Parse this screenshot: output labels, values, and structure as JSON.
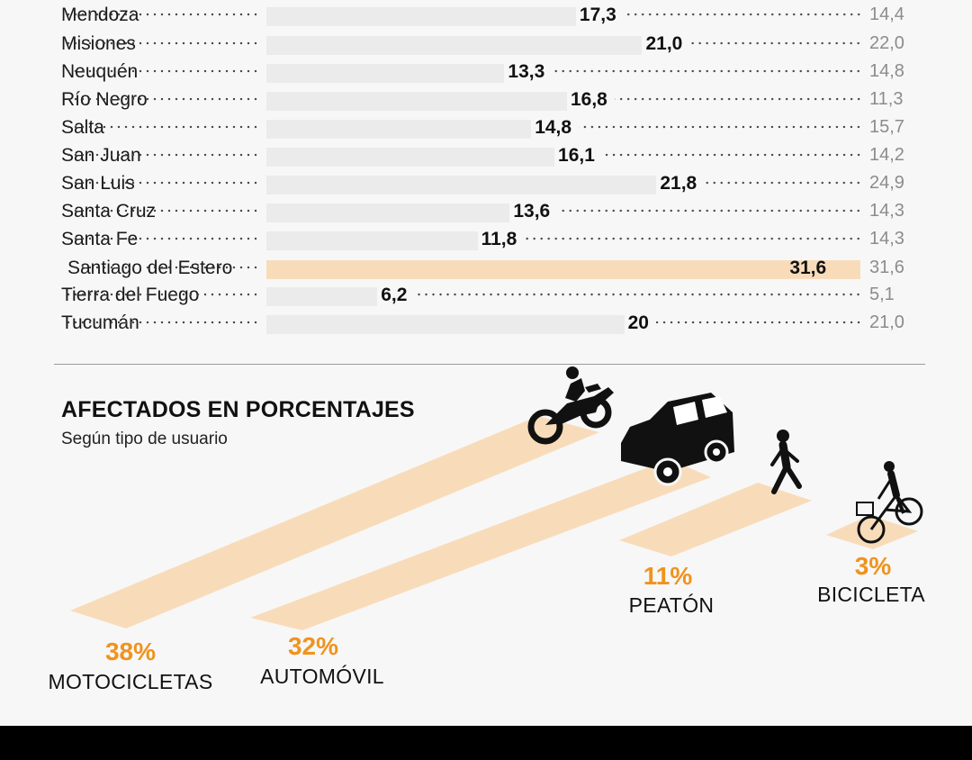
{
  "provinces": {
    "rows": [
      {
        "name": "Mendoza",
        "value": "17,3",
        "previous": "14,4"
      },
      {
        "name": "Misiones",
        "value": "21,0",
        "previous": "22,0"
      },
      {
        "name": "Neuquén",
        "value": "13,3",
        "previous": "14,8"
      },
      {
        "name": "Río Negro",
        "value": "16,8",
        "previous": "11,3"
      },
      {
        "name": "Salta",
        "value": "14,8",
        "previous": "15,7"
      },
      {
        "name": "San Juan",
        "value": "16,1",
        "previous": "14,2"
      },
      {
        "name": "San Luis",
        "value": "21,8",
        "previous": "24,9"
      },
      {
        "name": "Santa Cruz",
        "value": "13,6",
        "previous": "14,3"
      },
      {
        "name": "Santa Fe",
        "value": "11,8",
        "previous": "14,3"
      },
      {
        "name": "Santiago del Estero",
        "value": "31,6",
        "previous": "31,6"
      },
      {
        "name": "Tierra del Fuego",
        "value": "6,2",
        "previous": "5,1"
      },
      {
        "name": "Tucumán",
        "value": "20",
        "previous": "21,0"
      }
    ],
    "highlight_index": 9,
    "highlight_color": "#f8dcba"
  },
  "section": {
    "title": "AFECTADOS EN PORCENTAJES",
    "subtitle": "Según tipo de usuario"
  },
  "chart_data": [
    {
      "type": "bar",
      "categories": [
        "Mendoza",
        "Misiones",
        "Neuquén",
        "Río Negro",
        "Salta",
        "San Juan",
        "San Luis",
        "Santa Cruz",
        "Santa Fe",
        "Santiago del Estero",
        "Tierra del Fuego",
        "Tucumán"
      ],
      "series": [
        {
          "values": [
            17.3,
            21.0,
            13.3,
            16.8,
            14.8,
            16.1,
            21.8,
            13.6,
            11.8,
            31.6,
            6.2,
            20
          ]
        },
        {
          "values": [
            14.4,
            22.0,
            14.8,
            11.3,
            15.7,
            14.2,
            24.9,
            14.3,
            14.3,
            31.6,
            5.1,
            21.0
          ]
        }
      ],
      "xlim": [
        0,
        33.2
      ],
      "orientation": "horizontal"
    },
    {
      "type": "bar",
      "title": "AFECTADOS EN PORCENTAJES",
      "subtitle": "Según tipo de usuario",
      "categories": [
        "MOTOCICLETAS",
        "AUTOMÓVIL",
        "PEATÓN",
        "BICICLETA"
      ],
      "values": [
        38,
        32,
        11,
        3
      ],
      "value_labels": [
        "38%",
        "32%",
        "11%",
        "3%"
      ],
      "accent_color": "#f0931e",
      "lane_color": "#f8dcba",
      "icons": [
        "motorcycle-icon",
        "car-icon",
        "pedestrian-icon",
        "bicycle-icon"
      ]
    }
  ]
}
